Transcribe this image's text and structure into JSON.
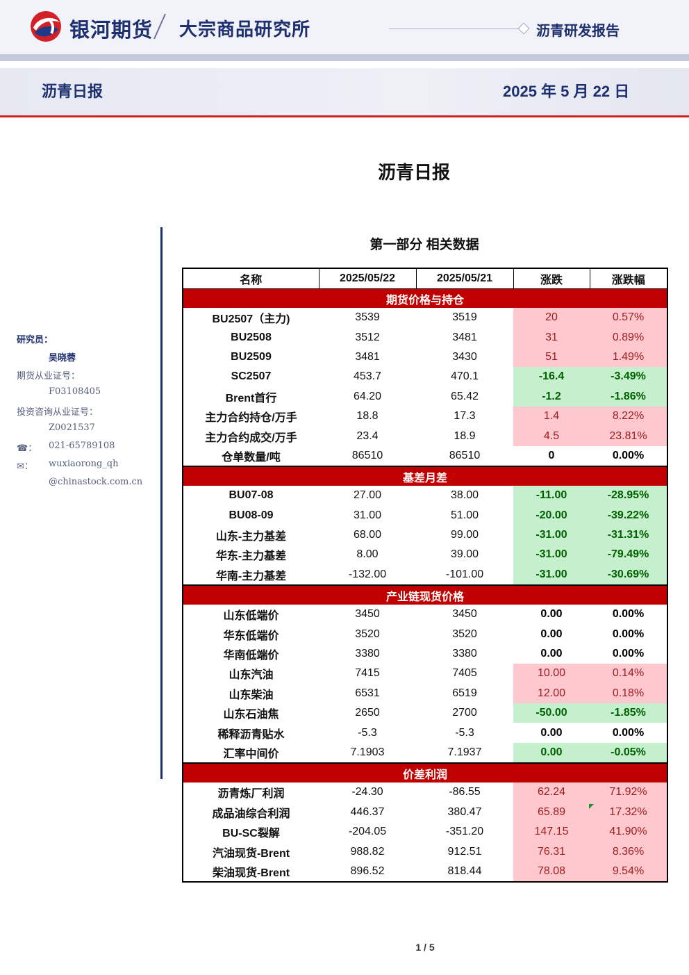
{
  "header": {
    "brand": "银河期货",
    "institute": "大宗商品研究所",
    "report_type": "沥青研发报告",
    "sub_title": "沥青日报",
    "date": "2025 年 5 月 22 日"
  },
  "doc_title": "沥青日报",
  "sidebar": {
    "researcher_label": "研究员：",
    "researcher_name": "吴晓蓉",
    "futures_cert_label": "期货从业证号：",
    "futures_cert": "F03108405",
    "invest_cert_label": "投资咨询从业证号：",
    "invest_cert": "Z0021537",
    "phone_label": "☎：",
    "phone": "021-65789108",
    "email_label": "✉：",
    "email_line1": "wuxiaorong_qh",
    "email_line2": "@chinastock.com.cn"
  },
  "section_title": "第一部分 相关数据",
  "table": {
    "headers": [
      "名称",
      "2025/05/22",
      "2025/05/21",
      "涨跌",
      "涨跌幅"
    ],
    "sections": [
      {
        "title": "期货价格与持仓",
        "rows": [
          [
            "BU2507（主力)",
            "3539",
            "3519",
            "20",
            "0.57%"
          ],
          [
            "BU2508",
            "3512",
            "3481",
            "31",
            "0.89%"
          ],
          [
            "BU2509",
            "3481",
            "3430",
            "51",
            "1.49%"
          ],
          [
            "SC2507",
            "453.7",
            "470.1",
            "-16.4",
            "-3.49%"
          ],
          [
            "Brent首行",
            "64.20",
            "65.42",
            "-1.2",
            "-1.86%"
          ],
          [
            "主力合约持仓/万手",
            "18.8",
            "17.3",
            "1.4",
            "8.22%"
          ],
          [
            "主力合约成交/万手",
            "23.4",
            "18.9",
            "4.5",
            "23.81%"
          ],
          [
            "仓单数量/吨",
            "86510",
            "86510",
            "0",
            "0.00%"
          ]
        ]
      },
      {
        "title": "基差月差",
        "rows": [
          [
            "BU07-08",
            "27.00",
            "38.00",
            "-11.00",
            "-28.95%"
          ],
          [
            "BU08-09",
            "31.00",
            "51.00",
            "-20.00",
            "-39.22%"
          ],
          [
            "山东-主力基差",
            "68.00",
            "99.00",
            "-31.00",
            "-31.31%"
          ],
          [
            "华东-主力基差",
            "8.00",
            "39.00",
            "-31.00",
            "-79.49%"
          ],
          [
            "华南-主力基差",
            "-132.00",
            "-101.00",
            "-31.00",
            "-30.69%"
          ]
        ]
      },
      {
        "title": "产业链现货价格",
        "rows": [
          [
            "山东低端价",
            "3450",
            "3450",
            "0.00",
            "0.00%"
          ],
          [
            "华东低端价",
            "3520",
            "3520",
            "0.00",
            "0.00%"
          ],
          [
            "华南低端价",
            "3380",
            "3380",
            "0.00",
            "0.00%"
          ],
          [
            "山东汽油",
            "7415",
            "7405",
            "10.00",
            "0.14%"
          ],
          [
            "山东柴油",
            "6531",
            "6519",
            "12.00",
            "0.18%"
          ],
          [
            "山东石油焦",
            "2650",
            "2700",
            "-50.00",
            "-1.85%"
          ],
          [
            "稀释沥青贴水",
            "-5.3",
            "-5.3",
            "0.00",
            "0.00%"
          ],
          [
            "汇率中间价",
            "7.1903",
            "7.1937",
            "0.00",
            "-0.05%"
          ]
        ]
      },
      {
        "title": "价差利润",
        "rows": [
          [
            "沥青炼厂利润",
            "-24.30",
            "-86.55",
            "62.24",
            "71.92%"
          ],
          [
            "成品油综合利润",
            "446.37",
            "380.47",
            "65.89",
            "17.32%"
          ],
          [
            "BU-SC裂解",
            "-204.05",
            "-351.20",
            "147.15",
            "41.90%"
          ],
          [
            "汽油现货-Brent",
            "988.82",
            "912.51",
            "76.31",
            "8.36%"
          ],
          [
            "柴油现货-Brent",
            "896.52",
            "818.44",
            "78.08",
            "9.54%"
          ]
        ]
      }
    ]
  },
  "page_number": "1 / 5",
  "colors": {
    "brand_navy": "#1d2f6f",
    "section_red": "#c00000",
    "up_fill": "#ffc7ce",
    "down_fill": "#c6efce"
  }
}
